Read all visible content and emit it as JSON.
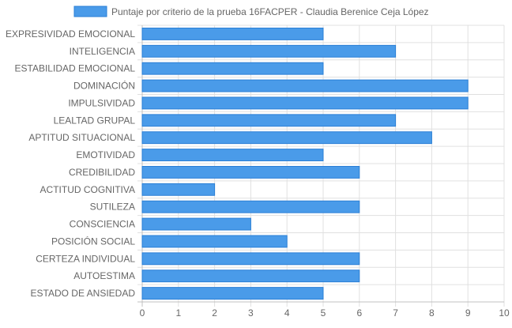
{
  "chart_data": {
    "type": "bar",
    "orientation": "horizontal",
    "categories": [
      "EXPRESIVIDAD EMOCIONAL",
      "INTELIGENCIA",
      "ESTABILIDAD EMOCIONAL",
      "DOMINACIÓN",
      "IMPULSIVIDAD",
      "LEALTAD GRUPAL",
      "APTITUD SITUACIONAL",
      "EMOTIVIDAD",
      "CREDIBILIDAD",
      "ACTITUD COGNITIVA",
      "SUTILEZA",
      "CONSCIENCIA",
      "POSICIÓN SOCIAL",
      "CERTEZA INDIVIDUAL",
      "AUTOESTIMA",
      "ESTADO DE ANSIEDAD"
    ],
    "series": [
      {
        "name": "Puntaje por criterio de la prueba 16FACPER - Claudia Berenice Ceja López",
        "values": [
          5,
          7,
          5,
          9,
          9,
          7,
          8,
          5,
          6,
          2,
          6,
          3,
          4,
          6,
          6,
          5
        ],
        "color": "#4a9be9",
        "border_color": "#2a7fd6"
      }
    ],
    "xlim": [
      0,
      10
    ],
    "x_ticks": [
      "0",
      "1",
      "2",
      "3",
      "4",
      "5",
      "6",
      "7",
      "8",
      "9",
      "10"
    ],
    "grid": true,
    "legend_position": "top"
  }
}
